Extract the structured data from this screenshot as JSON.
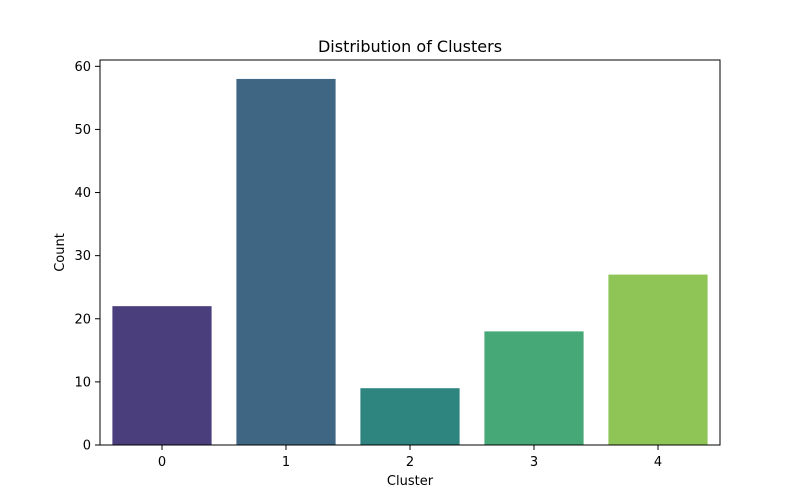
{
  "chart_data": {
    "type": "bar",
    "title": "Distribution of Clusters",
    "xlabel": "Cluster",
    "ylabel": "Count",
    "categories": [
      "0",
      "1",
      "2",
      "3",
      "4"
    ],
    "values": [
      22,
      58,
      9,
      18,
      27
    ],
    "colors": [
      "#4a3f7c",
      "#3f6784",
      "#2e847f",
      "#46a877",
      "#8fc556"
    ],
    "ylim": [
      0,
      61
    ],
    "yticks": [
      0,
      10,
      20,
      30,
      40,
      50,
      60
    ],
    "grid": false,
    "legend": "none"
  }
}
